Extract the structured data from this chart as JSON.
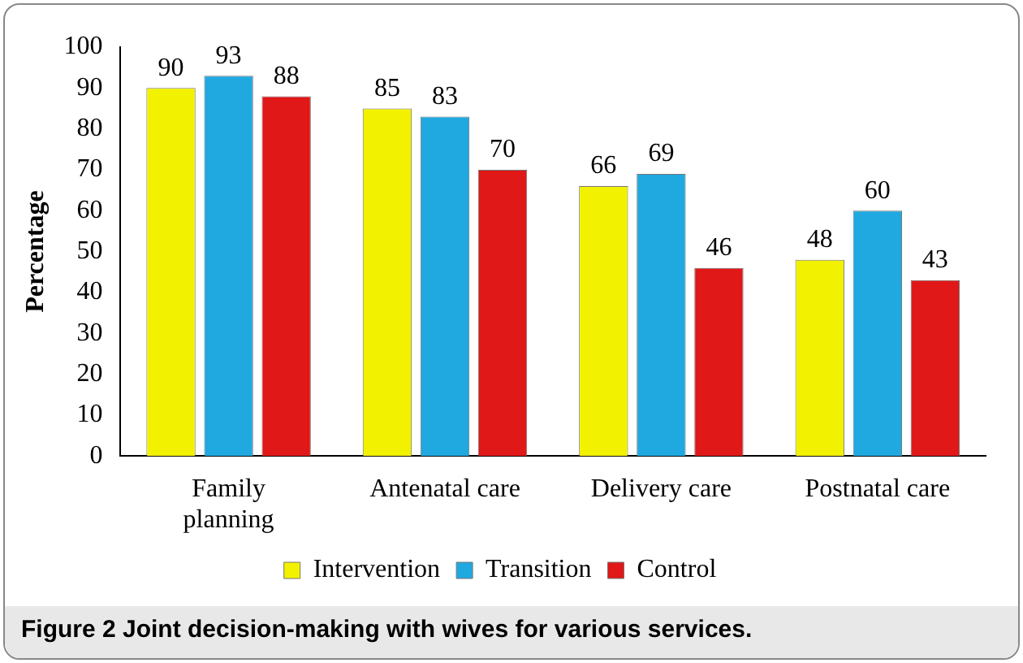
{
  "chart_data": {
    "type": "bar",
    "title": "Figure 2 Joint decision-making with wives for various services.",
    "ylabel": "Percentage",
    "categories": [
      "Family planning",
      "Antenatal care",
      "Delivery care",
      "Postnatal care"
    ],
    "series": [
      {
        "name": "Intervention",
        "color": "#f2f200",
        "values": [
          90,
          85,
          66,
          48
        ]
      },
      {
        "name": "Transition",
        "color": "#20a8e0",
        "values": [
          93,
          83,
          69,
          60
        ]
      },
      {
        "name": "Control",
        "color": "#e01818",
        "values": [
          88,
          70,
          46,
          43
        ]
      }
    ],
    "ylim": [
      0,
      100
    ],
    "yticks": [
      0,
      10,
      20,
      30,
      40,
      50,
      60,
      70,
      80,
      90,
      100
    ],
    "grid": false,
    "legend": "bottom",
    "data_labels": true
  }
}
